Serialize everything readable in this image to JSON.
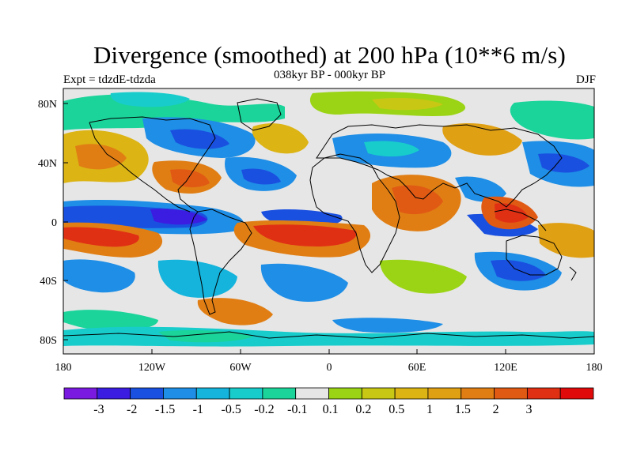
{
  "title": "Divergence (smoothed) at 200 hPa (10**6 m/s)",
  "subtitle": "038kyr BP - 000kyr BP",
  "experiment": "Expt = tdzdE-tdzda",
  "season": "DJF",
  "map": {
    "lat_labels": [
      "80N",
      "40N",
      "0",
      "40S",
      "80S"
    ],
    "lon_labels": [
      "180",
      "120W",
      "60W",
      "0",
      "60E",
      "120E",
      "180"
    ],
    "palette": {
      "n6": "#7a1ae0",
      "n5": "#3a1de0",
      "n4": "#1a50e0",
      "n3": "#1e8ee6",
      "n2": "#14b4dc",
      "n1": "#18cccc",
      "n0": "#1ad49a",
      "zero": "#e6e6e6",
      "p1": "#9ad414",
      "p2": "#c8c814",
      "p3": "#dcb414",
      "p4": "#e0a014",
      "p5": "#e07e14",
      "p6": "#e05a14",
      "p7": "#e03014",
      "p8": "#e00a0a"
    }
  },
  "colorbar": {
    "colors": [
      "#7a1ae0",
      "#3a1de0",
      "#1a50e0",
      "#1e8ee6",
      "#14b4dc",
      "#18cccc",
      "#1ad49a",
      "#e6e6e6",
      "#9ad414",
      "#c8c814",
      "#dcb414",
      "#e0a014",
      "#e07e14",
      "#e05a14",
      "#e03014",
      "#e00a0a"
    ],
    "labels": [
      "-3",
      "-2",
      "-1.5",
      "-1",
      "-0.5",
      "-0.2",
      "-0.1",
      "0.1",
      "0.2",
      "0.5",
      "1",
      "1.5",
      "2",
      "3"
    ]
  }
}
